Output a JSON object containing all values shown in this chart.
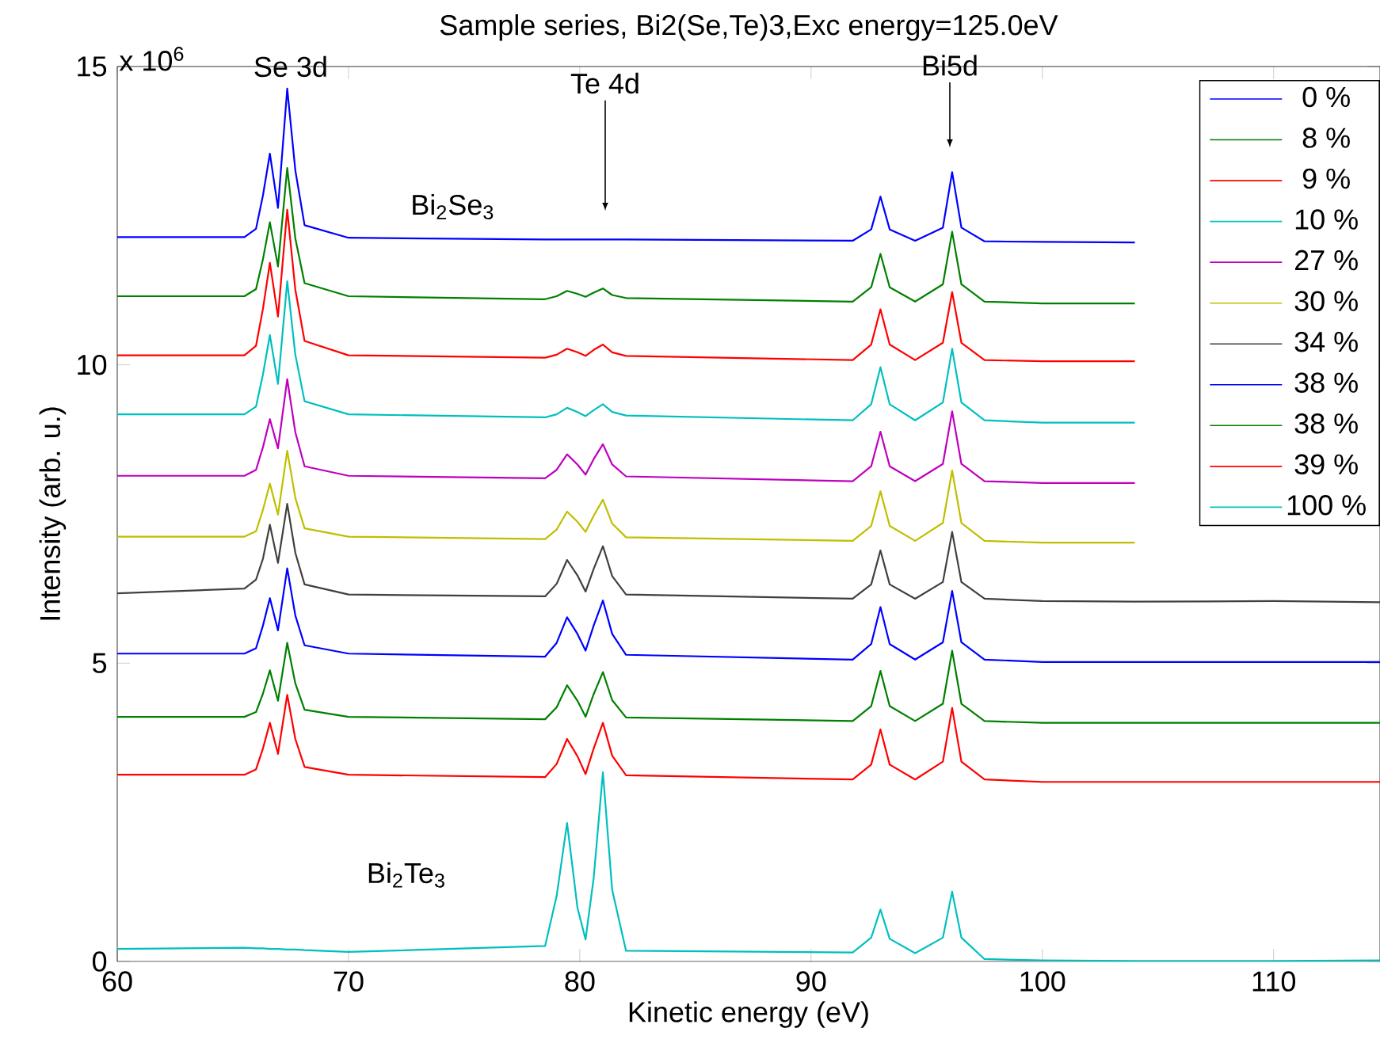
{
  "chart_data": {
    "type": "line",
    "title": "Sample series, Bi2(Se,Te)3,Exc energy=125.0eV",
    "xlabel": "Kinetic energy (eV)",
    "ylabel": "Intensity (arb. u.)",
    "annotations": [
      "x 10$^{6}$",
      "Se 3d",
      "Te 4d",
      "Bi5d",
      "Bi$_{2}$Se$_{3}$",
      "Bi$_{2}$Te$_{3}$"
    ],
    "xlim": [
      60,
      114.6
    ],
    "ylim": [
      0,
      15
    ],
    "xticks": [
      60,
      70,
      80,
      90,
      100,
      110
    ],
    "yticks": [
      0,
      5,
      10,
      15
    ],
    "legend": "top right",
    "x": [
      60,
      65.5,
      66.0,
      66.3,
      66.6,
      66.95,
      67.35,
      67.7,
      68.1,
      70,
      78.5,
      79.0,
      79.45,
      79.9,
      80.25,
      80.6,
      81.0,
      81.4,
      82.0,
      91.8,
      92.6,
      93.0,
      93.4,
      94.5,
      95.7,
      96.1,
      96.5,
      97.5,
      100,
      104,
      110,
      114.6
    ],
    "series": [
      {
        "name": "0 %",
        "color": "#0000ff",
        "values": [
          12.14,
          12.14,
          12.28,
          12.84,
          13.54,
          12.63,
          14.63,
          13.26,
          12.34,
          12.13,
          12.1,
          12.1,
          12.1,
          12.1,
          12.1,
          12.1,
          12.1,
          12.1,
          12.1,
          12.08,
          12.27,
          12.82,
          12.27,
          12.08,
          12.3,
          13.23,
          12.3,
          12.07,
          12.06,
          12.05,
          null,
          null
        ]
      },
      {
        "name": "8 %",
        "color": "#008000",
        "values": [
          11.15,
          11.15,
          11.27,
          11.77,
          12.39,
          11.65,
          13.3,
          12.12,
          11.37,
          11.15,
          11.1,
          11.15,
          11.24,
          11.19,
          11.14,
          11.21,
          11.28,
          11.17,
          11.12,
          11.06,
          11.3,
          11.86,
          11.3,
          11.06,
          11.35,
          12.23,
          11.35,
          11.06,
          11.03,
          11.03,
          null,
          null
        ]
      },
      {
        "name": "9 %",
        "color": "#ff0000",
        "values": [
          10.16,
          10.16,
          10.32,
          10.94,
          11.71,
          10.81,
          12.6,
          11.26,
          10.4,
          10.16,
          10.12,
          10.17,
          10.27,
          10.21,
          10.15,
          10.25,
          10.34,
          10.21,
          10.15,
          10.08,
          10.34,
          10.93,
          10.34,
          10.08,
          10.37,
          11.22,
          10.37,
          10.08,
          10.06,
          10.06,
          null,
          null
        ]
      },
      {
        "name": "10 %",
        "color": "#00bfbf",
        "values": [
          9.17,
          9.17,
          9.3,
          9.84,
          10.5,
          9.68,
          11.4,
          10.17,
          9.39,
          9.17,
          9.12,
          9.17,
          9.28,
          9.21,
          9.14,
          9.24,
          9.34,
          9.21,
          9.15,
          9.07,
          9.34,
          9.96,
          9.34,
          9.07,
          9.37,
          10.27,
          9.37,
          9.07,
          9.03,
          9.03,
          null,
          null
        ]
      },
      {
        "name": "27 %",
        "color": "#bf00bf",
        "values": [
          8.14,
          8.14,
          8.24,
          8.62,
          9.09,
          8.6,
          9.76,
          8.87,
          8.3,
          8.14,
          8.1,
          8.24,
          8.5,
          8.33,
          8.16,
          8.42,
          8.67,
          8.33,
          8.13,
          8.05,
          8.3,
          8.88,
          8.3,
          8.05,
          8.34,
          9.22,
          8.34,
          8.05,
          8.02,
          8.02,
          null,
          null
        ]
      },
      {
        "name": "30 %",
        "color": "#bfbf00",
        "values": [
          7.12,
          7.12,
          7.21,
          7.57,
          8.01,
          7.49,
          8.56,
          7.77,
          7.26,
          7.12,
          7.08,
          7.24,
          7.54,
          7.37,
          7.2,
          7.47,
          7.74,
          7.34,
          7.11,
          7.05,
          7.3,
          7.88,
          7.3,
          7.05,
          7.35,
          8.23,
          7.35,
          7.05,
          7.02,
          7.02,
          null,
          null
        ]
      },
      {
        "name": "34 %",
        "color": "#404040",
        "values": [
          6.17,
          6.25,
          6.4,
          6.75,
          7.32,
          6.68,
          7.67,
          6.85,
          6.32,
          6.15,
          6.12,
          6.33,
          6.73,
          6.47,
          6.2,
          6.58,
          6.96,
          6.46,
          6.15,
          6.08,
          6.32,
          6.89,
          6.32,
          6.08,
          6.36,
          7.2,
          6.36,
          6.08,
          6.04,
          6.03,
          6.04,
          6.02
        ]
      },
      {
        "name": "38 %",
        "color": "#0000ff",
        "values": [
          5.16,
          5.16,
          5.25,
          5.63,
          6.09,
          5.55,
          6.59,
          5.8,
          5.3,
          5.16,
          5.11,
          5.34,
          5.77,
          5.49,
          5.21,
          5.63,
          6.05,
          5.49,
          5.14,
          5.06,
          5.32,
          5.94,
          5.32,
          5.06,
          5.35,
          6.21,
          5.35,
          5.06,
          5.02,
          5.02,
          5.02,
          5.02
        ]
      },
      {
        "name": "38 %",
        "color": "#008000",
        "values": [
          4.1,
          4.1,
          4.18,
          4.49,
          4.88,
          4.37,
          5.34,
          4.66,
          4.22,
          4.1,
          4.06,
          4.26,
          4.63,
          4.37,
          4.1,
          4.48,
          4.85,
          4.38,
          4.09,
          4.03,
          4.28,
          4.87,
          4.28,
          4.03,
          4.32,
          5.21,
          4.32,
          4.03,
          4.0,
          4.0,
          4.0,
          4.0
        ]
      },
      {
        "name": "39 %",
        "color": "#ff0000",
        "values": [
          3.13,
          3.13,
          3.22,
          3.57,
          4.0,
          3.48,
          4.47,
          3.73,
          3.26,
          3.13,
          3.09,
          3.31,
          3.73,
          3.44,
          3.14,
          3.57,
          4.0,
          3.45,
          3.12,
          3.05,
          3.3,
          3.89,
          3.3,
          3.05,
          3.35,
          4.25,
          3.35,
          3.05,
          3.01,
          3.01,
          3.01,
          3.01
        ]
      },
      {
        "name": "100 %",
        "color": "#00bfbf",
        "values": [
          0.21,
          0.23,
          0.22,
          0.22,
          0.21,
          0.21,
          0.2,
          0.2,
          0.19,
          0.16,
          0.26,
          1.1,
          2.32,
          0.9,
          0.37,
          1.4,
          3.17,
          1.2,
          0.18,
          0.15,
          0.4,
          0.87,
          0.38,
          0.14,
          0.4,
          1.17,
          0.4,
          0.04,
          0.02,
          0.01,
          0.01,
          0.02
        ]
      }
    ]
  }
}
